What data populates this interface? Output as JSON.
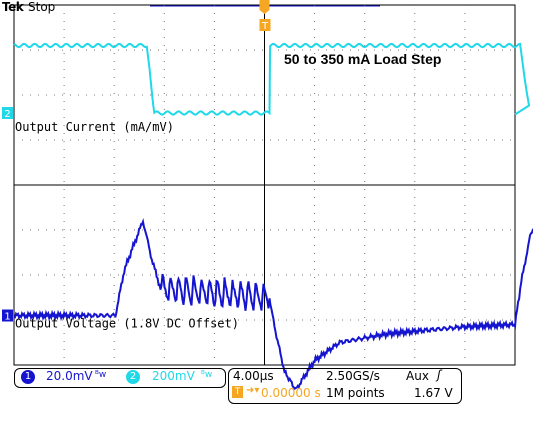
{
  "header": {
    "brand": "Tek",
    "run_state": "Stop"
  },
  "channels": [
    {
      "id": "1",
      "scale": "20.0mV",
      "coupling_symbol": "ᴮw",
      "color": "#1515d0"
    },
    {
      "id": "2",
      "scale": "200mV",
      "coupling_symbol": "ᴮw",
      "color": "#20d8e8"
    }
  ],
  "timebase": {
    "per_div": "4.00µs",
    "sample_rate": "2.50GS/s",
    "record_length": "1M points",
    "trigger_source": "Aux",
    "trigger_slope_symbol": "ʃ",
    "trigger_level": "1.67 V",
    "trigger_time": "0.00000 s"
  },
  "markers": {
    "trigger_marker": "T",
    "ch1_marker": "1",
    "ch2_marker": "2"
  },
  "chart_data": {
    "type": "line",
    "title": "50 to 350 mA Load Step",
    "grid": true,
    "divisions": {
      "x": 10,
      "y": 8
    },
    "x_unit": "µs",
    "x_per_div": 4,
    "series": [
      {
        "name": "Output Current (mA/mV)",
        "channel": "2",
        "color": "#20d8e8",
        "v_per_div": 200,
        "x": [
          0,
          10.6,
          11.2,
          20.4,
          20.45,
          40.4,
          41.2,
          40.0
        ],
        "y": [
          350,
          350,
          50,
          50,
          350,
          350,
          50,
          50
        ]
      },
      {
        "name": "Output Voltage (1.8V DC Offset)",
        "channel": "1",
        "color": "#1515d0",
        "v_per_div": 20,
        "x": [
          0,
          8.1,
          8.8,
          9.6,
          10.3,
          11.0,
          11.7,
          20.4,
          20.8,
          21.6,
          22.5,
          24.0,
          26.0,
          30.0,
          36.0,
          40.0,
          40.5,
          41.2,
          41.8,
          42.3,
          43.0,
          44.0
        ],
        "y": [
          0,
          0,
          20,
          32,
          42,
          25,
          12,
          8,
          -5,
          -25,
          -33,
          -20,
          -12,
          -8,
          -5,
          -4,
          15,
          35,
          43,
          30,
          15,
          -5
        ]
      }
    ],
    "annotations": [
      "50 to 350 mA Load Step",
      "Output Current (mA/mV)",
      "Output Voltage (1.8V DC Offset)"
    ]
  }
}
